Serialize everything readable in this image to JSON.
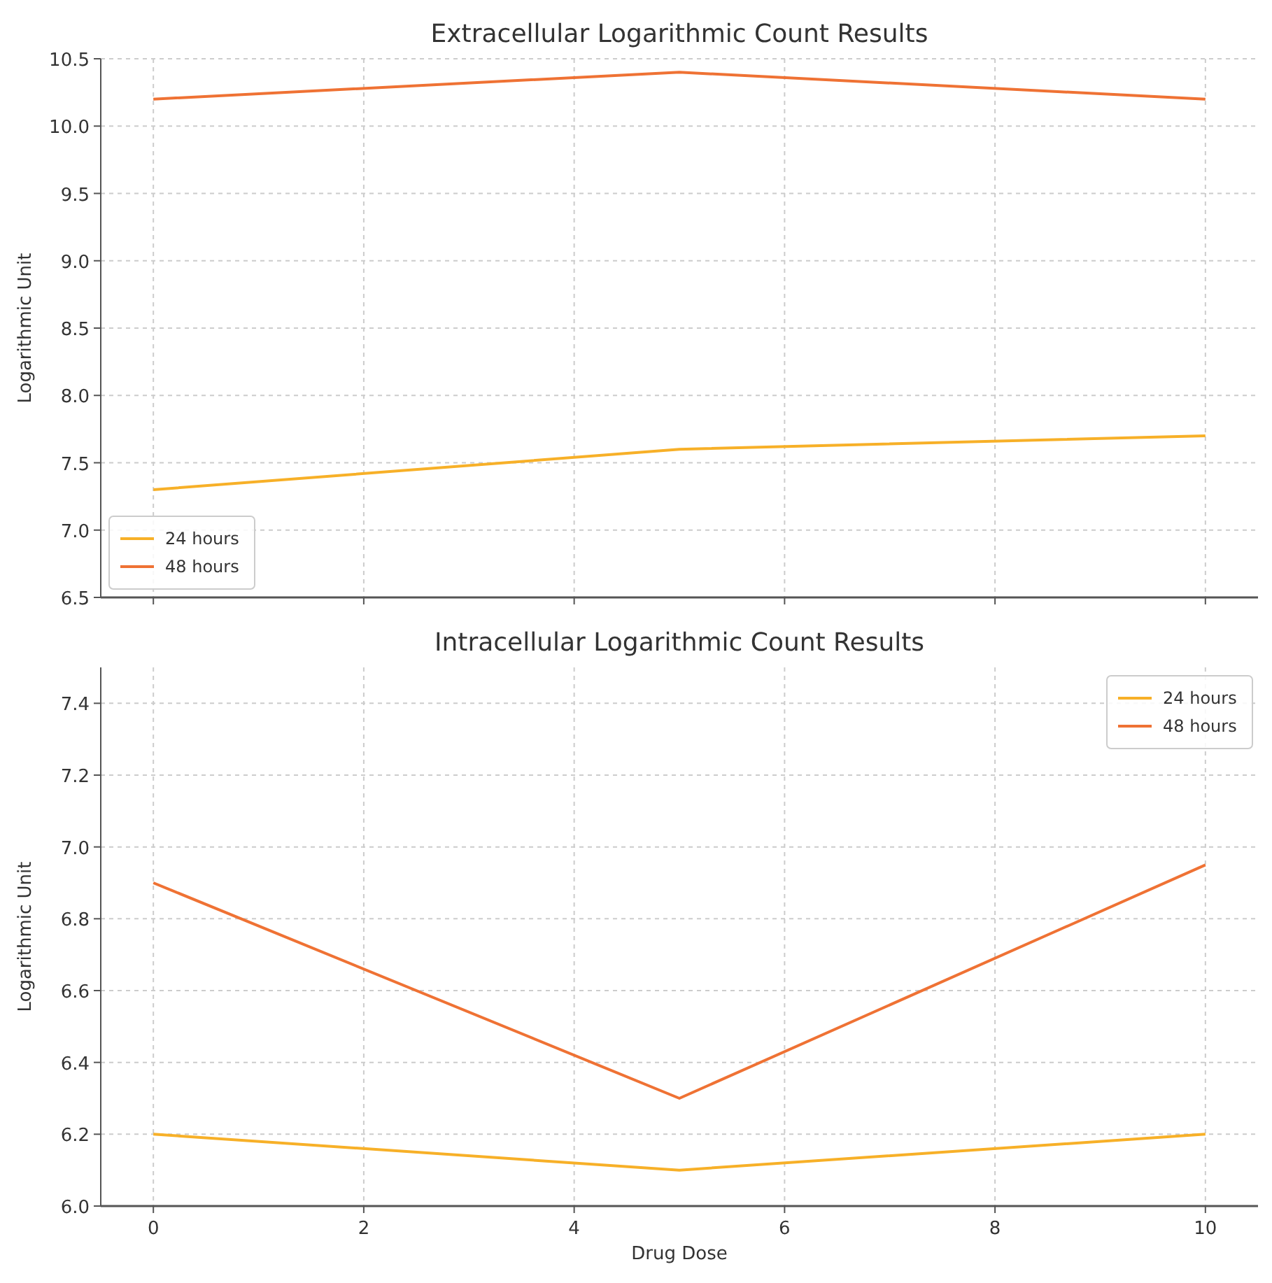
{
  "chart_data": [
    {
      "type": "line",
      "title": "Extracellular Logarithmic Count Results",
      "ylabel": "Logarithmic Unit",
      "x": [
        0,
        5,
        10
      ],
      "series": [
        {
          "name": "24 hours",
          "color": "#f7b028",
          "values": [
            7.3,
            7.6,
            7.7
          ]
        },
        {
          "name": "48 hours",
          "color": "#ef7234",
          "values": [
            10.2,
            10.4,
            10.2
          ]
        }
      ],
      "xlim": [
        -0.5,
        10.5
      ],
      "xticks": [
        {
          "value": 0,
          "label": null
        },
        {
          "value": 2,
          "label": null
        },
        {
          "value": 4,
          "label": null
        },
        {
          "value": 6,
          "label": null
        },
        {
          "value": 8,
          "label": null
        },
        {
          "value": 10,
          "label": null
        }
      ],
      "ylim": [
        6.5,
        10.5
      ],
      "yticks": [
        {
          "value": 6.5,
          "label": "6.5"
        },
        {
          "value": 7,
          "label": "7.0"
        },
        {
          "value": 7.5,
          "label": "7.5"
        },
        {
          "value": 8,
          "label": "8.0"
        },
        {
          "value": 8.5,
          "label": "8.5"
        },
        {
          "value": 9,
          "label": "9.0"
        },
        {
          "value": 9.5,
          "label": "9.5"
        },
        {
          "value": 10,
          "label": "10.0"
        },
        {
          "value": 10.5,
          "label": "10.5"
        }
      ],
      "tick_labels": "y",
      "grid": true,
      "legend": "bottom left",
      "line_style": "solid",
      "marker": "none"
    },
    {
      "type": "line",
      "title": "Intracellular Logarithmic Count Results",
      "xlabel": "Drug Dose",
      "ylabel": "Logarithmic Unit",
      "x": [
        0,
        5,
        10
      ],
      "series": [
        {
          "name": "24 hours",
          "color": "#f7b028",
          "values": [
            6.2,
            6.1,
            6.2
          ]
        },
        {
          "name": "48 hours",
          "color": "#ef7234",
          "values": [
            6.9,
            6.3,
            6.95
          ]
        }
      ],
      "xlim": [
        -0.5,
        10.5
      ],
      "xticks": [
        0,
        2,
        4,
        6,
        8,
        10
      ],
      "ylim": [
        6.0,
        7.5
      ],
      "yticks": [
        {
          "value": 6,
          "label": "6.0"
        },
        {
          "value": 6.2,
          "label": "6.2"
        },
        {
          "value": 6.4,
          "label": "6.4"
        },
        {
          "value": 6.6,
          "label": "6.6"
        },
        {
          "value": 6.8,
          "label": "6.8"
        },
        {
          "value": 7,
          "label": "7.0"
        },
        {
          "value": 7.2,
          "label": "7.2"
        },
        {
          "value": 7.4,
          "label": "7.4"
        }
      ],
      "grid": true,
      "legend": "top right",
      "line_style": "solid",
      "marker": "none"
    }
  ]
}
